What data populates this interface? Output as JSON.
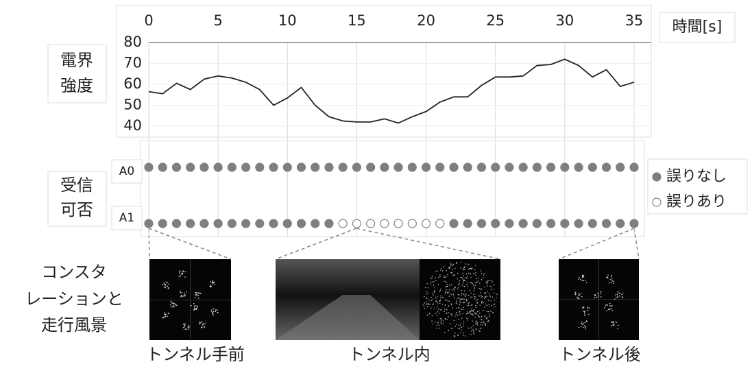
{
  "chart_data": [
    {
      "type": "line",
      "y_label": [
        "電界",
        "強度"
      ],
      "x_label": "時間[s]",
      "x": [
        0,
        1,
        2,
        3,
        4,
        5,
        6,
        7,
        8,
        9,
        10,
        11,
        12,
        13,
        14,
        15,
        16,
        17,
        18,
        19,
        20,
        21,
        22,
        23,
        24,
        25,
        26,
        27,
        28,
        29,
        30,
        31,
        32,
        33,
        34,
        35
      ],
      "xlim": [
        0,
        35
      ],
      "xticks": [
        0,
        5,
        10,
        15,
        20,
        25,
        30,
        35
      ],
      "ylim": [
        40,
        80
      ],
      "yticks": [
        40,
        50,
        60,
        70,
        80
      ],
      "grid": true,
      "series": [
        {
          "color": "#222222",
          "values": [
            56.5,
            55.5,
            60.5,
            57.5,
            62.5,
            64,
            63,
            61,
            57.5,
            50,
            53.5,
            58.5,
            50,
            44.5,
            42.5,
            42,
            42,
            43.5,
            41.5,
            44.5,
            47,
            51.5,
            54,
            54,
            59.5,
            63.5,
            63.5,
            64,
            69,
            69.5,
            72,
            69,
            63.5,
            67,
            59,
            61
          ]
        }
      ]
    },
    {
      "type": "status",
      "y_label": [
        "受信",
        "可否"
      ],
      "x": [
        0,
        1,
        2,
        3,
        4,
        5,
        6,
        7,
        8,
        9,
        10,
        11,
        12,
        13,
        14,
        15,
        16,
        17,
        18,
        19,
        20,
        21,
        22,
        23,
        24,
        25,
        26,
        27,
        28,
        29,
        30,
        31,
        32,
        33,
        34,
        35
      ],
      "xlim": [
        0,
        35
      ],
      "legend": [
        {
          "name": "誤りなし",
          "color": "#7f7f7f"
        },
        {
          "name": "誤りあり",
          "color": "#ffffff"
        }
      ],
      "series": [
        {
          "name": "A0",
          "values": [
            true,
            true,
            true,
            true,
            true,
            true,
            true,
            true,
            true,
            true,
            true,
            true,
            true,
            true,
            true,
            true,
            true,
            true,
            true,
            true,
            true,
            true,
            true,
            true,
            true,
            true,
            true,
            true,
            true,
            true,
            true,
            true,
            true,
            true,
            true,
            true
          ]
        },
        {
          "name": "A1",
          "values": [
            true,
            true,
            true,
            true,
            true,
            true,
            true,
            true,
            true,
            true,
            true,
            true,
            true,
            true,
            false,
            false,
            false,
            false,
            false,
            false,
            false,
            false,
            true,
            true,
            true,
            true,
            true,
            true,
            true,
            true,
            true,
            true,
            true,
            true,
            true,
            true
          ]
        }
      ]
    }
  ],
  "scenes": {
    "label": [
      "コンスタ",
      "レーションと",
      "走行風景"
    ],
    "captions": [
      "トンネル手前",
      "トンネル内",
      "トンネル後"
    ]
  }
}
